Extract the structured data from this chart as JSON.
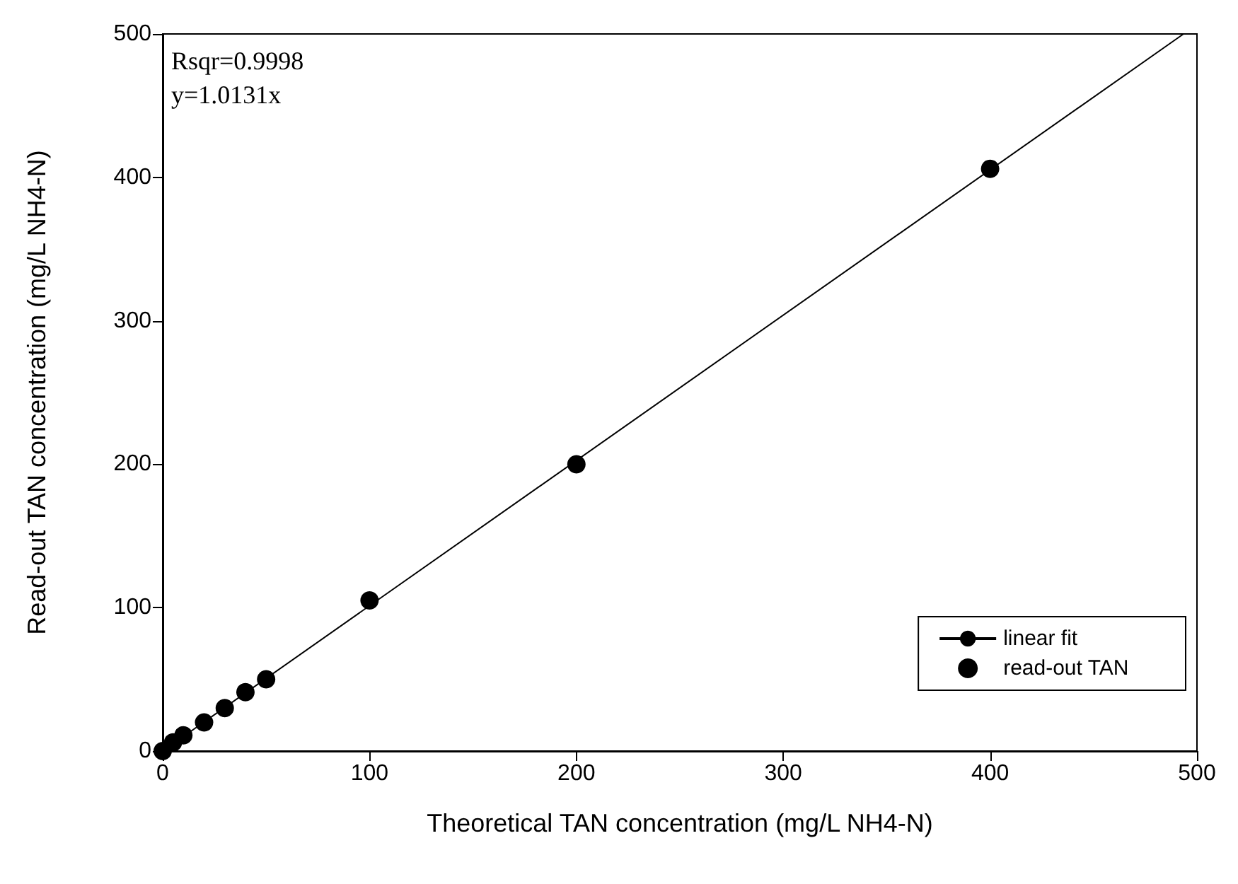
{
  "chart_data": {
    "type": "scatter",
    "xlabel": "Theoretical TAN concentration (mg/L NH4-N)",
    "ylabel": "Read-out TAN concentration (mg/L NH4-N)",
    "xlim": [
      0,
      500
    ],
    "ylim": [
      0,
      500
    ],
    "xticks": [
      0,
      100,
      200,
      300,
      400,
      500
    ],
    "yticks": [
      0,
      100,
      200,
      300,
      400,
      500
    ],
    "annotations": [
      "Rsqr=0.9998",
      "y=1.0131x"
    ],
    "legend": "bottom right",
    "grid": false,
    "series": [
      {
        "name": "linear fit",
        "type": "line",
        "color": "#000000",
        "x": [
          0,
          493.5
        ],
        "values": [
          0,
          500
        ],
        "line_style": "solid"
      },
      {
        "name": "read-out TAN",
        "color": "#000000",
        "marker": "circle",
        "x": [
          0,
          5,
          10,
          20,
          30,
          40,
          50,
          100,
          200,
          400
        ],
        "values": [
          0,
          6,
          11,
          20,
          30,
          41,
          50,
          105,
          200,
          406
        ]
      }
    ]
  }
}
